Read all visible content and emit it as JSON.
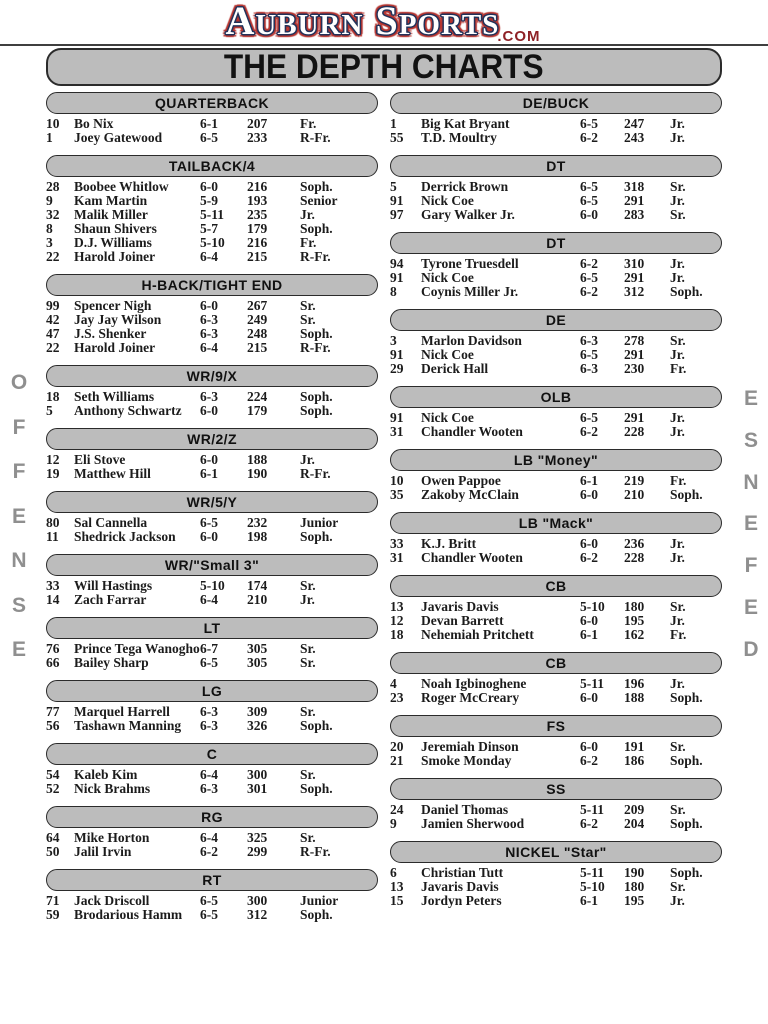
{
  "header": {
    "logo": {
      "word1_initial": "A",
      "word1_rest": "UBURN",
      "word2_initial": "S",
      "word2_rest": "PORTS",
      "suffix": ".COM"
    },
    "title": "THE DEPTH CHARTS"
  },
  "side_labels": {
    "left": "OFFENSE",
    "right": "DEFENSE"
  },
  "columns": {
    "left_name": "offense",
    "right_name": "defense"
  },
  "offense_sections": [
    {
      "title": "QUARTERBACK",
      "players": [
        {
          "num": "10",
          "name": "Bo Nix",
          "ht": "6-1",
          "wt": "207",
          "cls": "Fr."
        },
        {
          "num": "1",
          "name": "Joey Gatewood",
          "ht": "6-5",
          "wt": "233",
          "cls": "R-Fr."
        }
      ]
    },
    {
      "title": "TAILBACK/4",
      "players": [
        {
          "num": "28",
          "name": "Boobee Whitlow",
          "ht": "6-0",
          "wt": "216",
          "cls": "Soph."
        },
        {
          "num": "9",
          "name": "Kam Martin",
          "ht": "5-9",
          "wt": "193",
          "cls": "Senior"
        },
        {
          "num": "32",
          "name": "Malik Miller",
          "ht": "5-11",
          "wt": "235",
          "cls": "Jr."
        },
        {
          "num": "8",
          "name": "Shaun Shivers",
          "ht": "5-7",
          "wt": "179",
          "cls": "Soph."
        },
        {
          "num": "3",
          "name": "D.J. Williams",
          "ht": "5-10",
          "wt": "216",
          "cls": "Fr."
        },
        {
          "num": "22",
          "name": "Harold Joiner",
          "ht": "6-4",
          "wt": "215",
          "cls": "R-Fr."
        }
      ]
    },
    {
      "title": "H-BACK/TIGHT END",
      "players": [
        {
          "num": "99",
          "name": "Spencer Nigh",
          "ht": "6-0",
          "wt": "267",
          "cls": "Sr."
        },
        {
          "num": "42",
          "name": "Jay Jay Wilson",
          "ht": "6-3",
          "wt": "249",
          "cls": "Sr."
        },
        {
          "num": "47",
          "name": "J.S. Shenker",
          "ht": "6-3",
          "wt": "248",
          "cls": "Soph."
        },
        {
          "num": "22",
          "name": "Harold Joiner",
          "ht": "6-4",
          "wt": "215",
          "cls": "R-Fr."
        }
      ]
    },
    {
      "title": "WR/9/X",
      "players": [
        {
          "num": "18",
          "name": "Seth Williams",
          "ht": "6-3",
          "wt": "224",
          "cls": "Soph."
        },
        {
          "num": "5",
          "name": "Anthony Schwartz",
          "ht": "6-0",
          "wt": "179",
          "cls": "Soph."
        }
      ]
    },
    {
      "title": "WR/2/Z",
      "players": [
        {
          "num": "12",
          "name": "Eli Stove",
          "ht": "6-0",
          "wt": "188",
          "cls": "Jr."
        },
        {
          "num": "19",
          "name": "Matthew Hill",
          "ht": "6-1",
          "wt": "190",
          "cls": "R-Fr."
        }
      ]
    },
    {
      "title": "WR/5/Y",
      "players": [
        {
          "num": "80",
          "name": "Sal Cannella",
          "ht": "6-5",
          "wt": "232",
          "cls": "Junior"
        },
        {
          "num": "11",
          "name": "Shedrick Jackson",
          "ht": "6-0",
          "wt": "198",
          "cls": "Soph."
        }
      ]
    },
    {
      "title": "WR/\"Small 3\"",
      "players": [
        {
          "num": "33",
          "name": "Will Hastings",
          "ht": "5-10",
          "wt": "174",
          "cls": "Sr."
        },
        {
          "num": "14",
          "name": "Zach Farrar",
          "ht": "6-4",
          "wt": "210",
          "cls": "Jr."
        }
      ]
    },
    {
      "title": "LT",
      "players": [
        {
          "num": "76",
          "name": "Prince Tega Wanogho",
          "ht": "6-7",
          "wt": "305",
          "cls": "Sr."
        },
        {
          "num": "66",
          "name": "Bailey Sharp",
          "ht": "6-5",
          "wt": "305",
          "cls": "Sr."
        }
      ]
    },
    {
      "title": "LG",
      "players": [
        {
          "num": "77",
          "name": "Marquel Harrell",
          "ht": "6-3",
          "wt": "309",
          "cls": "Sr."
        },
        {
          "num": "56",
          "name": "Tashawn Manning",
          "ht": "6-3",
          "wt": "326",
          "cls": "Soph."
        }
      ]
    },
    {
      "title": "C",
      "players": [
        {
          "num": "54",
          "name": "Kaleb Kim",
          "ht": "6-4",
          "wt": "300",
          "cls": "Sr."
        },
        {
          "num": "52",
          "name": "Nick Brahms",
          "ht": "6-3",
          "wt": "301",
          "cls": "Soph."
        }
      ]
    },
    {
      "title": "RG",
      "players": [
        {
          "num": "64",
          "name": "Mike Horton",
          "ht": "6-4",
          "wt": "325",
          "cls": "Sr."
        },
        {
          "num": "50",
          "name": "Jalil Irvin",
          "ht": "6-2",
          "wt": "299",
          "cls": "R-Fr."
        }
      ]
    },
    {
      "title": "RT",
      "players": [
        {
          "num": "71",
          "name": "Jack Driscoll",
          "ht": "6-5",
          "wt": "300",
          "cls": "Junior"
        },
        {
          "num": "59",
          "name": "Brodarious Hamm",
          "ht": "6-5",
          "wt": "312",
          "cls": "Soph."
        }
      ]
    }
  ],
  "defense_sections": [
    {
      "title": "DE/BUCK",
      "players": [
        {
          "num": "1",
          "name": "Big Kat Bryant",
          "ht": "6-5",
          "wt": "247",
          "cls": "Jr."
        },
        {
          "num": "55",
          "name": "T.D. Moultry",
          "ht": "6-2",
          "wt": "243",
          "cls": "Jr."
        }
      ]
    },
    {
      "title": "DT",
      "players": [
        {
          "num": "5",
          "name": "Derrick Brown",
          "ht": "6-5",
          "wt": "318",
          "cls": "Sr."
        },
        {
          "num": "91",
          "name": "Nick Coe",
          "ht": "6-5",
          "wt": "291",
          "cls": "Jr."
        },
        {
          "num": "97",
          "name": "Gary Walker Jr.",
          "ht": "6-0",
          "wt": "283",
          "cls": "Sr."
        }
      ]
    },
    {
      "title": "DT",
      "players": [
        {
          "num": "94",
          "name": "Tyrone Truesdell",
          "ht": "6-2",
          "wt": "310",
          "cls": "Jr."
        },
        {
          "num": "91",
          "name": "Nick Coe",
          "ht": "6-5",
          "wt": "291",
          "cls": "Jr."
        },
        {
          "num": "8",
          "name": "Coynis Miller Jr.",
          "ht": "6-2",
          "wt": "312",
          "cls": "Soph."
        }
      ]
    },
    {
      "title": "DE",
      "players": [
        {
          "num": "3",
          "name": "Marlon Davidson",
          "ht": "6-3",
          "wt": "278",
          "cls": "Sr."
        },
        {
          "num": "91",
          "name": "Nick Coe",
          "ht": "6-5",
          "wt": "291",
          "cls": "Jr."
        },
        {
          "num": "29",
          "name": "Derick Hall",
          "ht": "6-3",
          "wt": "230",
          "cls": "Fr."
        }
      ]
    },
    {
      "title": "OLB",
      "players": [
        {
          "num": "91",
          "name": "Nick Coe",
          "ht": "6-5",
          "wt": "291",
          "cls": "Jr."
        },
        {
          "num": "31",
          "name": "Chandler Wooten",
          "ht": "6-2",
          "wt": "228",
          "cls": "Jr."
        }
      ]
    },
    {
      "title": "LB \"Money\"",
      "players": [
        {
          "num": "10",
          "name": "Owen Pappoe",
          "ht": "6-1",
          "wt": "219",
          "cls": "Fr."
        },
        {
          "num": "35",
          "name": "Zakoby McClain",
          "ht": "6-0",
          "wt": "210",
          "cls": "Soph."
        }
      ]
    },
    {
      "title": "LB \"Mack\"",
      "players": [
        {
          "num": "33",
          "name": "K.J. Britt",
          "ht": "6-0",
          "wt": "236",
          "cls": "Jr."
        },
        {
          "num": "31",
          "name": "Chandler Wooten",
          "ht": "6-2",
          "wt": "228",
          "cls": "Jr."
        }
      ]
    },
    {
      "title": "CB",
      "players": [
        {
          "num": "13",
          "name": "Javaris Davis",
          "ht": "5-10",
          "wt": "180",
          "cls": "Sr."
        },
        {
          "num": "12",
          "name": "Devan Barrett",
          "ht": "6-0",
          "wt": "195",
          "cls": "Jr."
        },
        {
          "num": "18",
          "name": "Nehemiah Pritchett",
          "ht": "6-1",
          "wt": "162",
          "cls": "Fr."
        }
      ]
    },
    {
      "title": "CB",
      "players": [
        {
          "num": "4",
          "name": "Noah Igbinoghene",
          "ht": "5-11",
          "wt": "196",
          "cls": "Jr."
        },
        {
          "num": "23",
          "name": "Roger McCreary",
          "ht": "6-0",
          "wt": "188",
          "cls": "Soph."
        }
      ]
    },
    {
      "title": "FS",
      "players": [
        {
          "num": "20",
          "name": "Jeremiah Dinson",
          "ht": "6-0",
          "wt": "191",
          "cls": "Sr."
        },
        {
          "num": "21",
          "name": "Smoke Monday",
          "ht": "6-2",
          "wt": "186",
          "cls": "Soph."
        }
      ]
    },
    {
      "title": "SS",
      "players": [
        {
          "num": "24",
          "name": "Daniel Thomas",
          "ht": "5-11",
          "wt": "209",
          "cls": "Sr."
        },
        {
          "num": "9",
          "name": "Jamien Sherwood",
          "ht": "6-2",
          "wt": "204",
          "cls": "Soph."
        }
      ]
    },
    {
      "title": "NICKEL \"Star\"",
      "players": [
        {
          "num": "6",
          "name": "Christian Tutt",
          "ht": "5-11",
          "wt": "190",
          "cls": "Soph."
        },
        {
          "num": "13",
          "name": "Javaris Davis",
          "ht": "5-10",
          "wt": "180",
          "cls": "Sr."
        },
        {
          "num": "15",
          "name": "Jordyn Peters",
          "ht": "6-1",
          "wt": "195",
          "cls": "Jr."
        }
      ]
    }
  ],
  "colors": {
    "pill_bg": "#bcbcbc",
    "pill_border": "#2b2b2b",
    "row_text": "#1c1c1c",
    "logo_outline": "#22325a",
    "logo_glow": "#b5342f",
    "com_color": "#8e2126",
    "side_label": "#8f8f8f",
    "rule": "#3f3f3f"
  }
}
